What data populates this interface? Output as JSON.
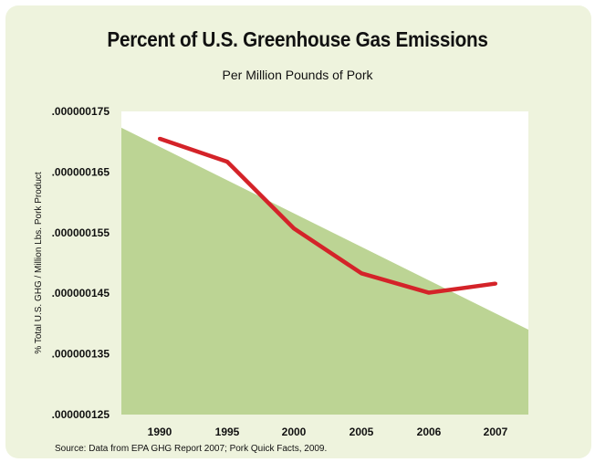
{
  "chart_data": {
    "type": "line",
    "title": "Percent of U.S. Greenhouse Gas Emissions",
    "subtitle": "Per Million Pounds of Pork",
    "xlabel": "",
    "ylabel": "% Total U.S. GHG / Million Lbs. Pork Product",
    "categories": [
      "1990",
      "1995",
      "2000",
      "2005",
      "2006",
      "2007"
    ],
    "y_tick_labels": [
      ".000000175",
      ".000000165",
      ".000000155",
      ".000000145",
      ".000000135",
      ".000000125"
    ],
    "ylim": [
      1.25e-07,
      1.75e-07
    ],
    "grid": false,
    "series": [
      {
        "values": [
          1.705e-07,
          1.667e-07,
          1.557e-07,
          1.483e-07,
          1.451e-07,
          1.466e-07
        ],
        "color": "#d42329"
      }
    ],
    "trend_area": {
      "start": 1.723e-07,
      "end": 1.39e-07,
      "color": "#bcd494"
    }
  },
  "source": "Source: Data from EPA GHG Report 2007; Pork Quick Facts, 2009."
}
